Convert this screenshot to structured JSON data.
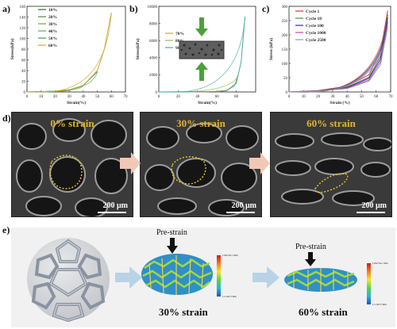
{
  "panels": {
    "a": {
      "label": "a)"
    },
    "b": {
      "label": "b)"
    },
    "c": {
      "label": "c)"
    },
    "d": {
      "label": "d)"
    },
    "e": {
      "label": "e)"
    }
  },
  "chart_data": [
    {
      "type": "line",
      "panel": "a",
      "xlabel": "Strain(%)",
      "ylabel": "Stress(kPa)",
      "xlim": [
        0,
        70
      ],
      "ylim": [
        0,
        160
      ],
      "xticks": [
        "0",
        "10",
        "20",
        "30",
        "40",
        "50",
        "60",
        "70"
      ],
      "yticks": [
        "0",
        "20",
        "40",
        "60",
        "80",
        "100",
        "120",
        "140",
        "160"
      ],
      "legend_position": "top-left",
      "series": [
        {
          "name": "10%",
          "color": "#2e6a2e",
          "x": [
            0,
            10
          ],
          "y": [
            0,
            0.5
          ]
        },
        {
          "name": "20%",
          "color": "#4c8a3e",
          "x": [
            0,
            10,
            20
          ],
          "y": [
            0,
            0.5,
            1.5
          ]
        },
        {
          "name": "30%",
          "color": "#7a9a3a",
          "x": [
            0,
            10,
            20,
            30
          ],
          "y": [
            0,
            0.5,
            1.5,
            4
          ]
        },
        {
          "name": "40%",
          "color": "#5aa65a",
          "x": [
            0,
            10,
            20,
            30,
            40
          ],
          "y": [
            0,
            0.5,
            1.5,
            4,
            12
          ]
        },
        {
          "name": "50%",
          "color": "#3f9a5a",
          "x": [
            0,
            10,
            20,
            30,
            40,
            50
          ],
          "y": [
            0,
            0.5,
            1.5,
            4,
            12,
            38
          ]
        },
        {
          "name": "60%",
          "color": "#c9a635",
          "x": [
            0,
            10,
            20,
            30,
            40,
            50,
            55,
            60
          ],
          "y": [
            0,
            0.5,
            1.5,
            4,
            12,
            40,
            80,
            148
          ]
        }
      ]
    },
    {
      "type": "line",
      "panel": "b",
      "xlabel": "Strain(%)",
      "ylabel": "Stress(kPa)",
      "xlim": [
        0,
        100
      ],
      "ylim": [
        0,
        10000
      ],
      "xticks": [
        "0",
        "20",
        "40",
        "60",
        "80"
      ],
      "yticks": [
        "0",
        "2000",
        "4000",
        "6000",
        "8000",
        "10000"
      ],
      "legend_position": "left",
      "series": [
        {
          "name": "70%",
          "color": "#c9a635",
          "x": [
            0,
            40,
            60,
            70,
            72
          ],
          "y": [
            0,
            20,
            60,
            150,
            300
          ]
        },
        {
          "name": "80%",
          "color": "#9ab84a",
          "x": [
            0,
            40,
            60,
            70,
            78,
            82
          ],
          "y": [
            0,
            20,
            60,
            150,
            700,
            2000
          ]
        },
        {
          "name": "90%",
          "color": "#4aa6a0",
          "x": [
            0,
            40,
            60,
            70,
            80,
            85,
            89
          ],
          "y": [
            0,
            20,
            60,
            150,
            1000,
            3500,
            8800
          ]
        }
      ]
    },
    {
      "type": "line",
      "panel": "c",
      "xlabel": "Strain (%)",
      "ylabel": "Stress (kPa)",
      "xlim": [
        0,
        70
      ],
      "ylim": [
        0,
        300
      ],
      "xticks": [
        "0",
        "10",
        "20",
        "30",
        "40",
        "50",
        "60",
        "70"
      ],
      "yticks": [
        "0",
        "50",
        "100",
        "150",
        "200",
        "250",
        "300"
      ],
      "legend_position": "top-left",
      "series": [
        {
          "name": "Cycle 1",
          "color": "#d23a3a",
          "x": [
            0,
            20,
            40,
            55,
            63,
            68
          ],
          "y": [
            0,
            5,
            20,
            60,
            140,
            285
          ]
        },
        {
          "name": "Cycle 10",
          "color": "#3a9a3a",
          "x": [
            0,
            20,
            40,
            55,
            63,
            68
          ],
          "y": [
            0,
            4,
            17,
            52,
            125,
            270
          ]
        },
        {
          "name": "Cycle 100",
          "color": "#2a2ab0",
          "x": [
            0,
            20,
            40,
            55,
            63,
            68
          ],
          "y": [
            0,
            4,
            15,
            48,
            115,
            260
          ]
        },
        {
          "name": "Cycle 1000",
          "color": "#c040c0",
          "x": [
            0,
            20,
            40,
            55,
            63,
            68
          ],
          "y": [
            0,
            3,
            13,
            42,
            105,
            245
          ]
        },
        {
          "name": "Cycle 2500",
          "color": "#9a9a9a",
          "x": [
            0,
            20,
            40,
            55,
            63,
            68
          ],
          "y": [
            0,
            3,
            12,
            38,
            95,
            230
          ]
        }
      ]
    }
  ],
  "sem": [
    {
      "title": "0% strain",
      "scale": "200 μm"
    },
    {
      "title": "30% strain",
      "scale": "200 μm"
    },
    {
      "title": "60% strain",
      "scale": "200 μm"
    }
  ],
  "sim": {
    "pre_strain_label": "Pre-strain",
    "caption1": "30% strain",
    "caption2": "60% strain",
    "cbar1": {
      "top": "1.00e+0e-1 Max",
      "bottom": "1.5.10e+5 Min"
    },
    "cbar2": {
      "top": "1.00e+0e-1 Max",
      "bottom": "1.5.10e+5 Min"
    }
  }
}
